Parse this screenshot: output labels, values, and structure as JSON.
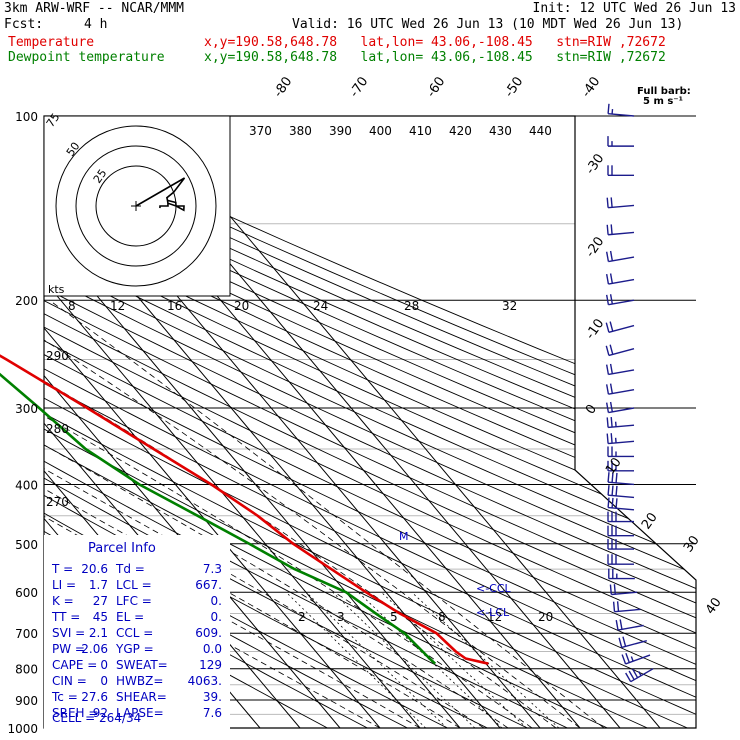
{
  "header": {
    "model": "3km ARW-WRF -- NCAR/MMM",
    "init": "Init: 12 UTC Wed 26 Jun 13",
    "fcst_label": "Fcst:",
    "fcst_value": "4 h",
    "valid": "Valid: 16 UTC Wed 26 Jun 13 (10 MDT Wed 26 Jun 13)"
  },
  "legend": {
    "temperature": {
      "label": "Temperature",
      "loc": "x,y=190.58,648.78   lat,lon= 43.06,-108.45   stn=RIW ,72672",
      "color": "#e00000"
    },
    "dewpoint": {
      "label": "Dewpoint temperature",
      "loc": "x,y=190.58,648.78   lat,lon= 43.06,-108.45   stn=RIW ,72672",
      "color": "#008000"
    }
  },
  "barb_legend": {
    "line1": "Full barb:",
    "line2": "5 m s⁻¹"
  },
  "hodograph": {
    "units": "kts",
    "rings": [
      "75",
      "50",
      "25"
    ]
  },
  "parcel_info": {
    "title": "Parcel Info",
    "rows": [
      {
        "a": "T  =",
        "av": "20.6",
        "b": "Td =",
        "bv": "7.3"
      },
      {
        "a": "LI =",
        "av": "1.7",
        "b": "LCL =",
        "bv": "667."
      },
      {
        "a": "K  =",
        "av": "27",
        "b": "LFC =",
        "bv": "0."
      },
      {
        "a": "TT =",
        "av": "45",
        "b": "EL  =",
        "bv": "0."
      },
      {
        "a": "SVI =",
        "av": "2.1",
        "b": "CCL =",
        "bv": "609."
      },
      {
        "a": "PW =",
        "av": "2.06",
        "b": "YGP =",
        "bv": "0.0"
      },
      {
        "a": "CAPE =",
        "av": "0",
        "b": "SWEAT=",
        "bv": "129"
      },
      {
        "a": "CIN =",
        "av": "0",
        "b": "HWBZ=",
        "bv": "4063."
      },
      {
        "a": "Tc =",
        "av": "27.6",
        "b": "SHEAR=",
        "bv": "39."
      },
      {
        "a": "SREH =",
        "av": "92",
        "b": "LAPSE=",
        "bv": "7.6"
      }
    ],
    "cell": "CELL = 264/34"
  },
  "level_labels": {
    "ccl": "<-CCL",
    "lcl": "<-LCL",
    "m": "M"
  },
  "chart_data": {
    "type": "line",
    "title": "",
    "pressure_levels": [
      100,
      200,
      300,
      400,
      500,
      600,
      700,
      800,
      900,
      1000
    ],
    "pressure_labels": [
      "100",
      "200",
      "300",
      "400",
      "500",
      "600",
      "700",
      "800",
      "900",
      "1000"
    ],
    "isotherm_labels": [
      "-80",
      "-70",
      "-60",
      "-50",
      "-40",
      "-30",
      "-20",
      "-10",
      "0",
      "10",
      "20",
      "30",
      "40"
    ],
    "theta_labels": [
      "370",
      "380",
      "390",
      "400",
      "410",
      "420",
      "430",
      "440"
    ],
    "theta_e_labels": [
      "290",
      "280",
      "270"
    ],
    "mixing_ratio_labels": [
      "2",
      "3",
      "5",
      "8",
      "12",
      "20"
    ],
    "hodo_speed_labels": [
      "8",
      "12",
      "16",
      "20",
      "24",
      "28",
      "32"
    ],
    "series": [
      {
        "name": "Temperature",
        "color": "#e00000",
        "points": [
          [
            785,
            20.6
          ],
          [
            770,
            16
          ],
          [
            750,
            15
          ],
          [
            700,
            14
          ],
          [
            650,
            9
          ],
          [
            600,
            5
          ],
          [
            500,
            -3
          ],
          [
            450,
            -6
          ],
          [
            400,
            -11
          ],
          [
            350,
            -18
          ],
          [
            300,
            -26
          ],
          [
            250,
            -36
          ],
          [
            200,
            -49
          ],
          [
            180,
            -55
          ],
          [
            150,
            -60
          ],
          [
            120,
            -62
          ],
          [
            100,
            -66
          ]
        ]
      },
      {
        "name": "Dewpoint temperature",
        "color": "#008000",
        "points": [
          [
            785,
            7.3
          ],
          [
            770,
            7
          ],
          [
            700,
            6
          ],
          [
            650,
            3
          ],
          [
            600,
            0
          ],
          [
            550,
            -8
          ],
          [
            500,
            -14
          ],
          [
            450,
            -21
          ],
          [
            400,
            -29
          ],
          [
            350,
            -35
          ],
          [
            300,
            -38
          ],
          [
            250,
            -42
          ],
          [
            200,
            -56
          ],
          [
            180,
            -64
          ],
          [
            150,
            -72
          ],
          [
            120,
            -80
          ],
          [
            100,
            -84
          ]
        ]
      }
    ],
    "wind_barbs": [
      {
        "p": 800,
        "dir": 240,
        "spd": 35
      },
      {
        "p": 760,
        "dir": 250,
        "spd": 25
      },
      {
        "p": 720,
        "dir": 255,
        "spd": 20
      },
      {
        "p": 680,
        "dir": 260,
        "spd": 20
      },
      {
        "p": 640,
        "dir": 265,
        "spd": 20
      },
      {
        "p": 600,
        "dir": 265,
        "spd": 20
      },
      {
        "p": 570,
        "dir": 270,
        "spd": 25
      },
      {
        "p": 540,
        "dir": 270,
        "spd": 30
      },
      {
        "p": 510,
        "dir": 270,
        "spd": 30
      },
      {
        "p": 485,
        "dir": 270,
        "spd": 30
      },
      {
        "p": 460,
        "dir": 270,
        "spd": 30
      },
      {
        "p": 440,
        "dir": 275,
        "spd": 30
      },
      {
        "p": 420,
        "dir": 275,
        "spd": 30
      },
      {
        "p": 400,
        "dir": 275,
        "spd": 30
      },
      {
        "p": 380,
        "dir": 270,
        "spd": 25
      },
      {
        "p": 360,
        "dir": 270,
        "spd": 25
      },
      {
        "p": 340,
        "dir": 265,
        "spd": 25
      },
      {
        "p": 320,
        "dir": 265,
        "spd": 25
      },
      {
        "p": 300,
        "dir": 260,
        "spd": 20
      },
      {
        "p": 280,
        "dir": 260,
        "spd": 20
      },
      {
        "p": 260,
        "dir": 260,
        "spd": 20
      },
      {
        "p": 240,
        "dir": 255,
        "spd": 20
      },
      {
        "p": 220,
        "dir": 255,
        "spd": 20
      },
      {
        "p": 200,
        "dir": 260,
        "spd": 20
      },
      {
        "p": 185,
        "dir": 260,
        "spd": 20
      },
      {
        "p": 170,
        "dir": 260,
        "spd": 20
      },
      {
        "p": 155,
        "dir": 265,
        "spd": 20
      },
      {
        "p": 140,
        "dir": 265,
        "spd": 20
      },
      {
        "p": 125,
        "dir": 270,
        "spd": 20
      },
      {
        "p": 112,
        "dir": 270,
        "spd": 15
      },
      {
        "p": 100,
        "dir": 275,
        "spd": 15
      }
    ]
  }
}
